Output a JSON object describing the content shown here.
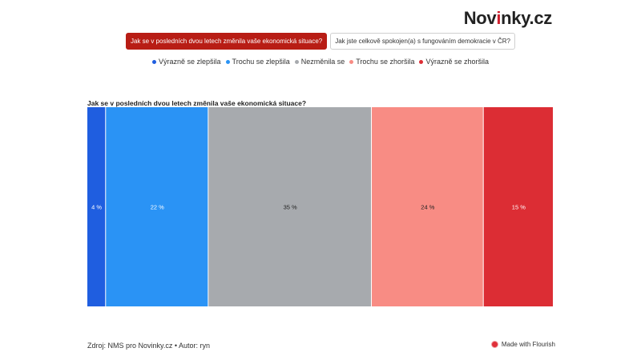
{
  "logo": {
    "prefix": "Nov",
    "accent": "i",
    "suffix": "nky.cz"
  },
  "tabs": [
    {
      "label": "Jak se v posledních dvou letech změnila vaše ekonomická situace?",
      "active": true
    },
    {
      "label": "Jak jste celkově spokojen(a) s fungováním demokracie v ČR?",
      "active": false
    }
  ],
  "colors": {
    "tab_active": "#b81d15",
    "series": [
      "#1f5ee0",
      "#2a93f5",
      "#a7aaae",
      "#f88c84",
      "#dc2d34"
    ]
  },
  "chart_data": {
    "type": "bar",
    "orientation": "horizontal",
    "stacked": true,
    "title": "Jak se v posledních dvou letech změnila vaše ekonomická situace?",
    "categories": [
      ""
    ],
    "series": [
      {
        "name": "Výrazně se zlepšila",
        "values": [
          4
        ],
        "label": "4 %",
        "color": "#1f5ee0"
      },
      {
        "name": "Trochu se zlepšila",
        "values": [
          22
        ],
        "label": "22 %",
        "color": "#2a93f5"
      },
      {
        "name": "Nezměnila se",
        "values": [
          35
        ],
        "label": "35 %",
        "color": "#a7aaae"
      },
      {
        "name": "Trochu se zhoršila",
        "values": [
          24
        ],
        "label": "24 %",
        "color": "#f88c84"
      },
      {
        "name": "Výrazně se zhoršila",
        "values": [
          15
        ],
        "label": "15 %",
        "color": "#dc2d34"
      }
    ],
    "xlim": [
      0,
      100
    ],
    "grid": false,
    "legend_position": "top"
  },
  "footer": {
    "source": "Zdroj: NMS pro Novinky.cz • Autor: ryn",
    "flourish": "Made with Flourish"
  }
}
